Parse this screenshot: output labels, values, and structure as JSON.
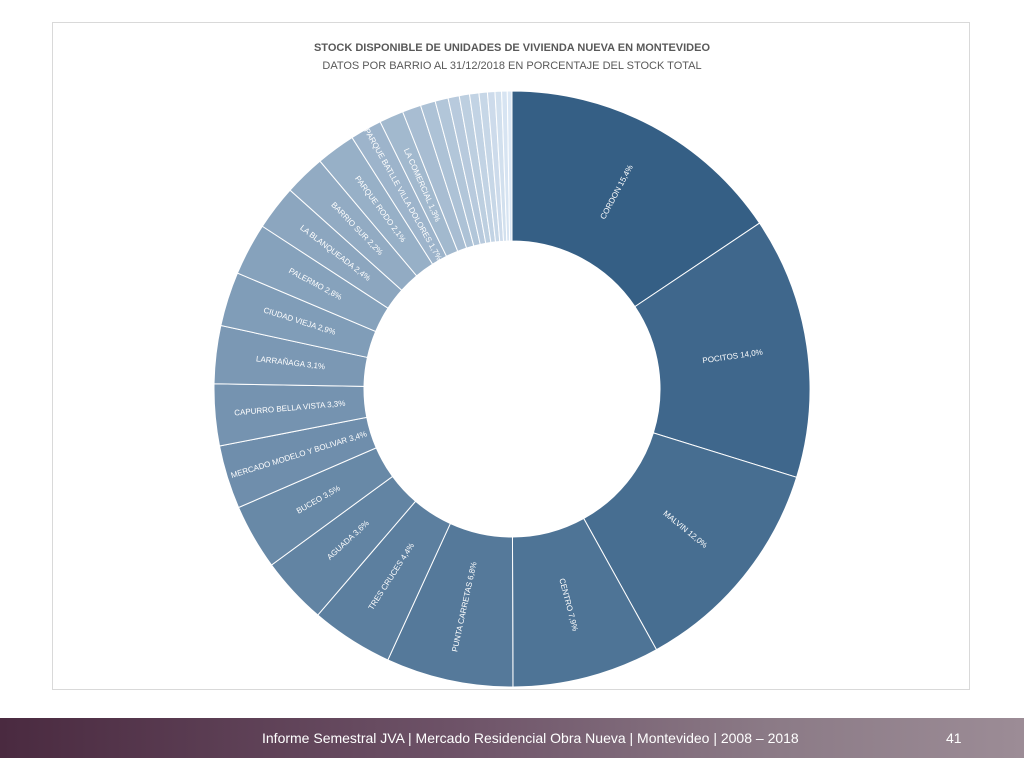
{
  "chart_data": {
    "type": "pie",
    "variant": "donut",
    "title": "STOCK DISPONIBLE DE UNIDADES DE VIVIENDA NUEVA EN MONTEVIDEO",
    "subtitle": "DATOS POR BARRIO AL 31/12/2018 EN PORCENTAJE DEL STOCK TOTAL",
    "slices": [
      {
        "name": "CORDON",
        "value": 15.4,
        "label": "CORDON 15,4%"
      },
      {
        "name": "POCITOS",
        "value": 14.0,
        "label": "POCITOS 14,0%"
      },
      {
        "name": "MALVIN",
        "value": 12.0,
        "label": "MALVIN 12,0%"
      },
      {
        "name": "CENTRO",
        "value": 7.9,
        "label": "CENTRO 7,9%"
      },
      {
        "name": "PUNTA CARRETAS",
        "value": 6.8,
        "label": "PUNTA CARRETAS 6,8%"
      },
      {
        "name": "TRES CRUCES",
        "value": 4.4,
        "label": "TRES CRUCES 4,4%"
      },
      {
        "name": "AGUADA",
        "value": 3.6,
        "label": "AGUADA 3,6%"
      },
      {
        "name": "BUCEO",
        "value": 3.5,
        "label": "BUCEO 3,5%"
      },
      {
        "name": "MERCADO MODELO Y BOLIVAR",
        "value": 3.4,
        "label": "MERCADO MODELO Y BOLIVAR  3,4%"
      },
      {
        "name": "CAPURRO BELLA VISTA",
        "value": 3.3,
        "label": "CAPURRO BELLA VISTA 3,3%"
      },
      {
        "name": "LARRAÑAGA",
        "value": 3.1,
        "label": "LARRAÑAGA 3,1%"
      },
      {
        "name": "CIUDAD VIEJA",
        "value": 2.9,
        "label": "CIUDAD VIEJA 2,9%"
      },
      {
        "name": "PALERMO",
        "value": 2.8,
        "label": "PALERMO 2,8%"
      },
      {
        "name": "LA BLANQUEADA",
        "value": 2.4,
        "label": "LA BLANQUEADA 2,4%"
      },
      {
        "name": "BARRIO SUR",
        "value": 2.2,
        "label": "BARRIO SUR 2,2%"
      },
      {
        "name": "PARQUE RODO",
        "value": 2.1,
        "label": "PARQUE RODO 2,1%"
      },
      {
        "name": "PARQUE BATLLE VILLA DOLORES",
        "value": 1.7,
        "label": "PARQUE BATLLE VILLA DOLORES 1,7%"
      },
      {
        "name": "LA COMERCIAL",
        "value": 1.3,
        "label": "LA COMERCIAL 1,3%"
      },
      {
        "name": "",
        "value": 1.0,
        "label": ""
      },
      {
        "name": "",
        "value": 0.8,
        "label": ""
      },
      {
        "name": "",
        "value": 0.7,
        "label": ""
      },
      {
        "name": "",
        "value": 0.6,
        "label": ""
      },
      {
        "name": "",
        "value": 0.55,
        "label": ""
      },
      {
        "name": "",
        "value": 0.5,
        "label": ""
      },
      {
        "name": "",
        "value": 0.45,
        "label": ""
      },
      {
        "name": "",
        "value": 0.4,
        "label": ""
      },
      {
        "name": "",
        "value": 0.35,
        "label": ""
      },
      {
        "name": "",
        "value": 0.3,
        "label": ""
      },
      {
        "name": "",
        "value": 0.25,
        "label": ""
      }
    ],
    "legend": "none",
    "colors": {
      "dark": "#355f85",
      "light": "#dce8f5",
      "edge": "#ffffff"
    }
  },
  "footer": {
    "text": "Informe Semestral JVA | Mercado Residencial Obra Nueva | Montevideo | 2008 – 2018",
    "page_number": "41"
  }
}
